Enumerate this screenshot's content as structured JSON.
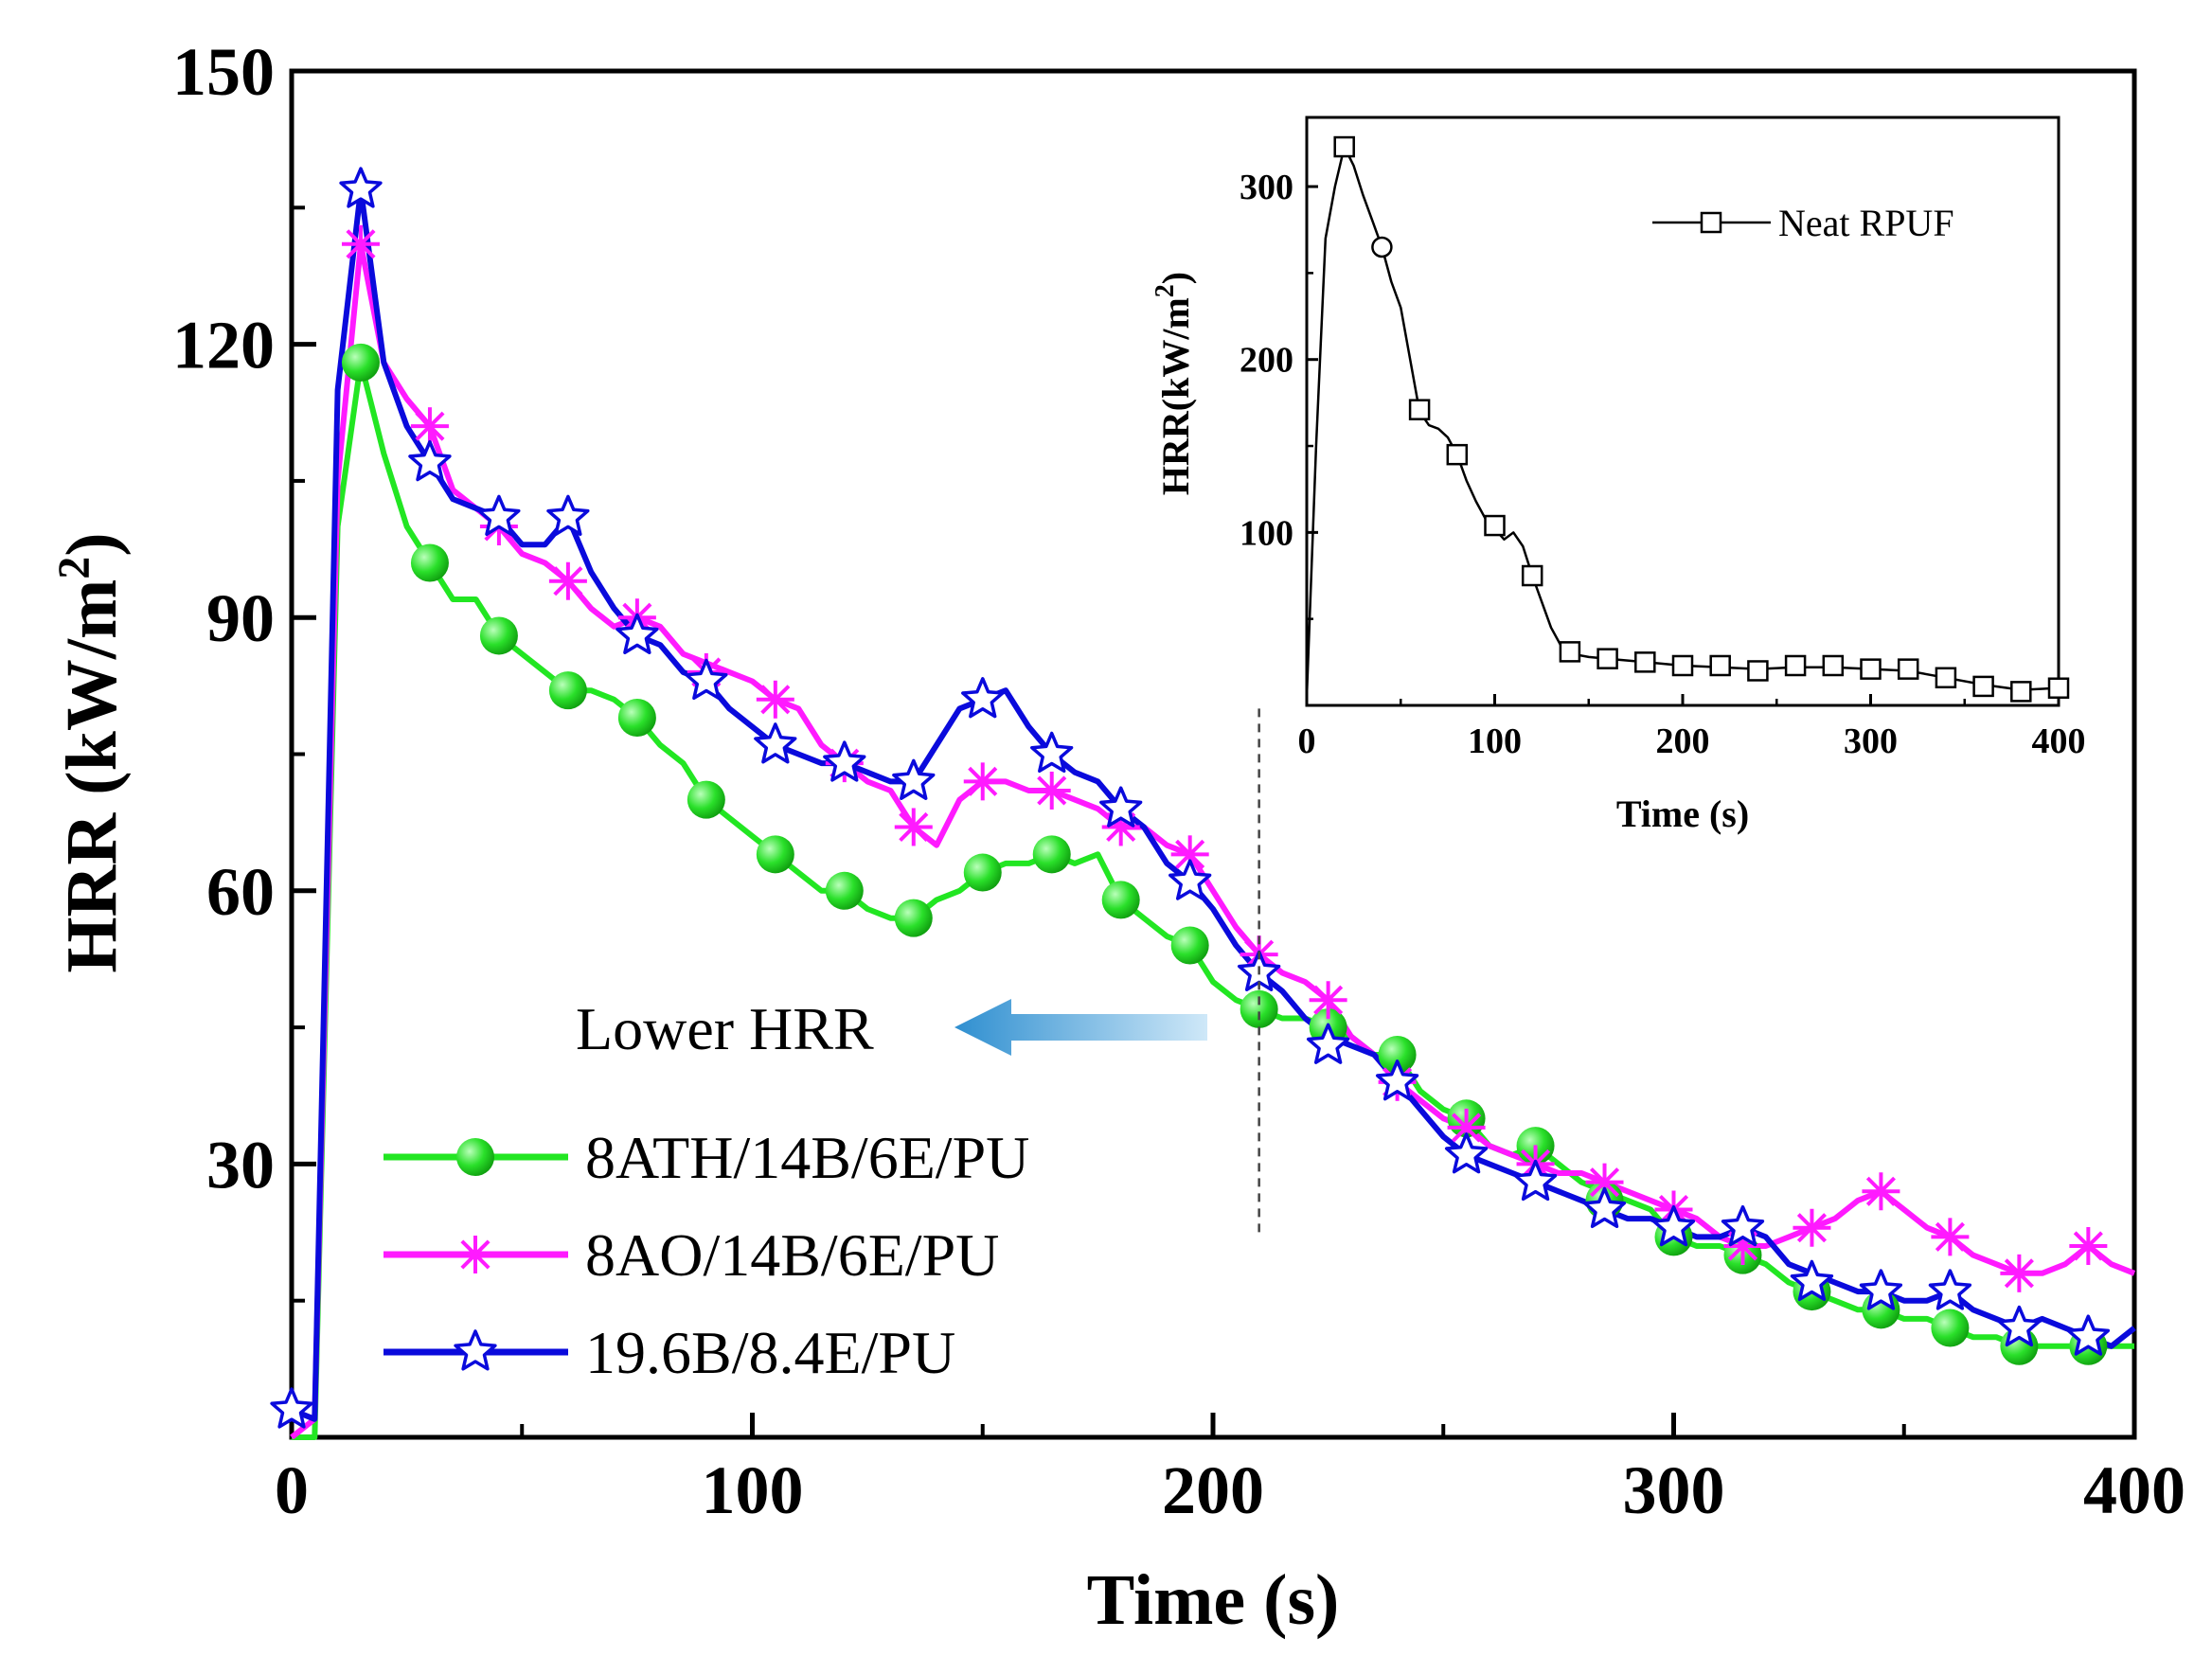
{
  "chart_data": [
    {
      "type": "line",
      "title": "",
      "xlabel": "Time (s)",
      "ylabel": "HRR (kW/m",
      "ylabel_superscript": "2",
      "ylabel_close": ")",
      "xlim": [
        0,
        400
      ],
      "ylim": [
        0,
        150
      ],
      "xticks": [
        0,
        100,
        200,
        300,
        400
      ],
      "xtick_labels": [
        "0",
        "100",
        "200",
        "300",
        "400"
      ],
      "yticks": [
        30,
        60,
        90,
        120,
        150
      ],
      "ytick_labels": [
        "30",
        "60",
        "90",
        "120",
        "150"
      ],
      "annotation": "Lower HRR",
      "reference_line_x": 210,
      "legend_position": "bottom-left",
      "series": [
        {
          "name": "8ATH/14B/6E/PU",
          "color": "#22e622",
          "marker": "circle",
          "x": [
            0,
            5,
            10,
            15,
            20,
            25,
            30,
            35,
            40,
            45,
            50,
            55,
            60,
            65,
            70,
            75,
            80,
            85,
            90,
            95,
            100,
            105,
            110,
            115,
            120,
            125,
            130,
            135,
            140,
            145,
            150,
            155,
            160,
            165,
            170,
            175,
            180,
            185,
            190,
            195,
            200,
            205,
            210,
            215,
            220,
            225,
            230,
            235,
            240,
            245,
            250,
            255,
            260,
            265,
            270,
            275,
            280,
            285,
            290,
            295,
            300,
            305,
            310,
            315,
            320,
            325,
            330,
            335,
            340,
            345,
            350,
            355,
            360,
            365,
            370,
            375,
            380,
            385,
            390,
            395,
            400
          ],
          "y": [
            0,
            0,
            100,
            118,
            108,
            100,
            96,
            92,
            92,
            88,
            86,
            84,
            82,
            82,
            81,
            79,
            76,
            74,
            70,
            68,
            66,
            64,
            62,
            60,
            60,
            58,
            57,
            57,
            59,
            60,
            62,
            63,
            63,
            64,
            63,
            64,
            59,
            57,
            55,
            54,
            50,
            48,
            47,
            46,
            46,
            45,
            44,
            42,
            42,
            38,
            36,
            35,
            32,
            31,
            32,
            30,
            28,
            27,
            26,
            25,
            22,
            21,
            21,
            20,
            19,
            17,
            16,
            15,
            14,
            14,
            13,
            13,
            12,
            11,
            11,
            10,
            10,
            10,
            10,
            10,
            10
          ],
          "markers_x": [
            15,
            30,
            45,
            60,
            75,
            90,
            105,
            120,
            135,
            150,
            165,
            180,
            195,
            210,
            225,
            240,
            255,
            270,
            285,
            300,
            315,
            330,
            345,
            360,
            375,
            390
          ],
          "markers_y": [
            118,
            96,
            88,
            82,
            79,
            70,
            64,
            60,
            57,
            62,
            64,
            59,
            54,
            47,
            45,
            42,
            35,
            32,
            26,
            22,
            20,
            16,
            14,
            12,
            10,
            10
          ]
        },
        {
          "name": "8AO/14B/6E/PU",
          "color": "#ff1aff",
          "marker": "asterisk",
          "x": [
            0,
            5,
            10,
            15,
            20,
            25,
            30,
            35,
            40,
            45,
            50,
            55,
            60,
            65,
            70,
            75,
            80,
            85,
            90,
            95,
            100,
            105,
            110,
            115,
            120,
            125,
            130,
            135,
            140,
            145,
            150,
            155,
            160,
            165,
            170,
            175,
            180,
            185,
            190,
            195,
            200,
            205,
            210,
            215,
            220,
            225,
            230,
            235,
            240,
            245,
            250,
            255,
            260,
            265,
            270,
            275,
            280,
            285,
            290,
            295,
            300,
            305,
            310,
            315,
            320,
            325,
            330,
            335,
            340,
            345,
            350,
            355,
            360,
            365,
            370,
            375,
            380,
            385,
            390,
            395,
            400
          ],
          "y": [
            0,
            2,
            105,
            131,
            118,
            114,
            111,
            104,
            102,
            100,
            97,
            96,
            94,
            91,
            89,
            90,
            89,
            86,
            85,
            84,
            83,
            81,
            80,
            76,
            74,
            72,
            71,
            67,
            65,
            70,
            72,
            72,
            71,
            71,
            70,
            69,
            67,
            67,
            65,
            64,
            60,
            56,
            53,
            51,
            50,
            48,
            44,
            42,
            39,
            37,
            35,
            34,
            32,
            31,
            30,
            29,
            29,
            28,
            27,
            26,
            25,
            24,
            22,
            21,
            21,
            22,
            23,
            24,
            26,
            27,
            25,
            23,
            22,
            20,
            19,
            18,
            18,
            19,
            21,
            19,
            18
          ],
          "markers_x": [
            15,
            30,
            45,
            60,
            75,
            90,
            105,
            120,
            135,
            150,
            165,
            180,
            195,
            210,
            225,
            240,
            255,
            270,
            285,
            300,
            315,
            330,
            345,
            360,
            375,
            390
          ],
          "markers_y": [
            131,
            111,
            100,
            94,
            90,
            84,
            81,
            74,
            67,
            72,
            71,
            67,
            64,
            53,
            48,
            39,
            34,
            30,
            28,
            25,
            21,
            23,
            27,
            22,
            18,
            21
          ]
        },
        {
          "name": "19.6B/8.4E/PU",
          "color": "#0a0adc",
          "marker": "star",
          "x": [
            0,
            5,
            10,
            15,
            20,
            25,
            30,
            35,
            40,
            45,
            50,
            55,
            60,
            65,
            70,
            75,
            80,
            85,
            90,
            95,
            100,
            105,
            110,
            115,
            120,
            125,
            130,
            135,
            140,
            145,
            150,
            155,
            160,
            165,
            170,
            175,
            180,
            185,
            190,
            195,
            200,
            205,
            210,
            215,
            220,
            225,
            230,
            235,
            240,
            245,
            250,
            255,
            260,
            265,
            270,
            275,
            280,
            285,
            290,
            295,
            300,
            305,
            310,
            315,
            320,
            325,
            330,
            335,
            340,
            345,
            350,
            355,
            360,
            365,
            370,
            375,
            380,
            385,
            390,
            395,
            400
          ],
          "y": [
            3,
            2,
            115,
            137,
            118,
            111,
            107,
            103,
            102,
            101,
            98,
            98,
            101,
            95,
            91,
            88,
            87,
            84,
            83,
            80,
            78,
            76,
            75,
            74,
            74,
            73,
            72,
            72,
            76,
            80,
            81,
            82,
            78,
            75,
            73,
            72,
            69,
            67,
            63,
            61,
            58,
            54,
            51,
            49,
            46,
            44,
            43,
            42,
            39,
            36,
            33,
            31,
            30,
            29,
            28,
            27,
            26,
            25,
            24,
            24,
            23,
            22,
            22,
            23,
            22,
            19,
            18,
            17,
            16,
            16,
            15,
            15,
            16,
            14,
            13,
            12,
            13,
            12,
            11,
            10,
            12
          ],
          "markers_x": [
            0,
            15,
            30,
            45,
            60,
            75,
            90,
            105,
            120,
            135,
            150,
            165,
            180,
            195,
            210,
            225,
            240,
            255,
            270,
            285,
            300,
            315,
            330,
            345,
            360,
            375,
            390
          ],
          "markers_y": [
            3,
            137,
            107,
            101,
            101,
            88,
            83,
            76,
            74,
            72,
            81,
            75,
            69,
            61,
            51,
            43,
            39,
            31,
            28,
            25,
            23,
            23,
            17,
            16,
            16,
            12,
            11
          ]
        }
      ]
    },
    {
      "type": "line",
      "title": "",
      "xlabel": "Time (s)",
      "ylabel": "HRR(kW/m",
      "ylabel_superscript": "2",
      "ylabel_close": ")",
      "xlim": [
        0,
        400
      ],
      "ylim": [
        0,
        340
      ],
      "xticks": [
        0,
        100,
        200,
        300,
        400
      ],
      "xtick_labels": [
        "0",
        "100",
        "200",
        "300",
        "400"
      ],
      "yticks": [
        100,
        200,
        300
      ],
      "ytick_labels": [
        "100",
        "200",
        "300"
      ],
      "legend_position": "top-right",
      "series": [
        {
          "name": "Neat RPUF",
          "color": "#000000",
          "marker": "square",
          "x": [
            0,
            5,
            10,
            15,
            20,
            25,
            30,
            35,
            40,
            45,
            50,
            55,
            60,
            65,
            70,
            75,
            80,
            85,
            90,
            95,
            100,
            105,
            110,
            115,
            120,
            125,
            130,
            135,
            140,
            150,
            160,
            170,
            180,
            200,
            220,
            240,
            260,
            280,
            300,
            320,
            340,
            360,
            380,
            400
          ],
          "y": [
            5,
            150,
            270,
            300,
            323,
            312,
            295,
            280,
            265,
            245,
            230,
            200,
            170,
            162,
            160,
            155,
            145,
            130,
            118,
            108,
            102,
            96,
            100,
            92,
            75,
            60,
            45,
            35,
            30,
            28,
            27,
            26,
            25,
            23,
            22,
            21,
            22,
            22,
            21,
            20,
            16,
            12,
            9,
            10
          ],
          "markers_x": [
            20,
            60,
            80,
            100,
            120,
            140,
            160,
            180,
            200,
            220,
            240,
            260,
            280,
            300,
            320,
            340,
            360,
            380,
            400
          ],
          "markers_y": [
            323,
            171,
            145,
            104,
            75,
            31,
            27,
            25,
            23,
            23,
            20,
            23,
            23,
            21,
            21,
            16,
            11,
            8,
            10
          ],
          "extra_marker": {
            "shape": "circle",
            "x": 40,
            "y": 265
          }
        }
      ]
    }
  ]
}
